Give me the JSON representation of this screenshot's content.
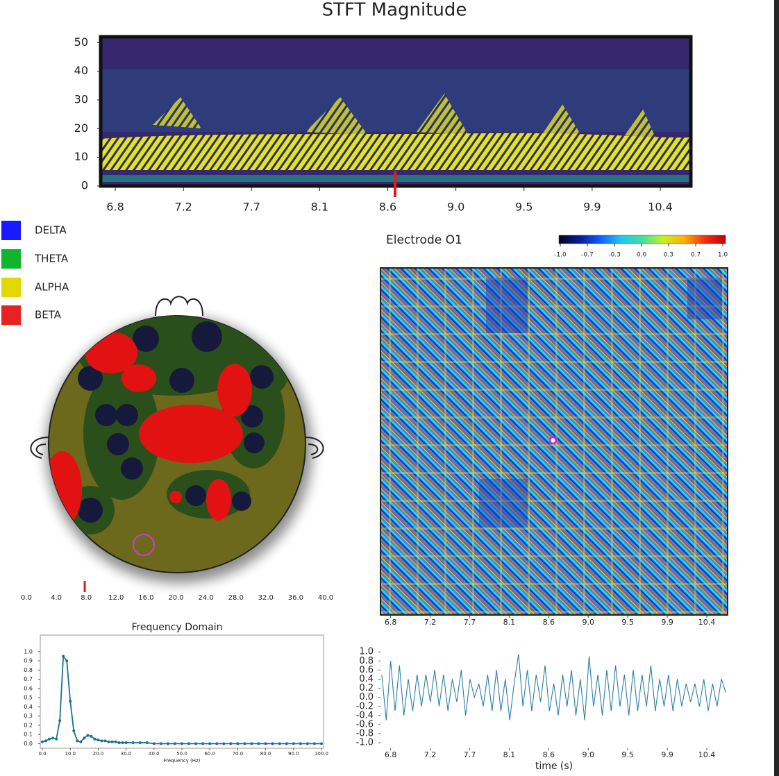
{
  "chart_data": [
    {
      "type": "spectrogram",
      "title": "STFT Magnitude",
      "xlim": [
        6.704,
        10.585
      ],
      "xticks": [
        6.8,
        {
          "value": 7.248,
          "label": "7.2"
        },
        {
          "value": 7.696,
          "label": "7.7"
        },
        {
          "value": 8.144,
          "label": "8.1"
        },
        {
          "value": 8.592,
          "label": "8.6"
        },
        {
          "value": 9.04,
          "label": "9.0"
        },
        {
          "value": 9.488,
          "label": "9.5"
        },
        {
          "value": 9.936,
          "label": "9.9"
        },
        {
          "value": 10.384,
          "label": "10.4"
        }
      ],
      "ylim": [
        0,
        52
      ],
      "yticks": [
        0,
        10,
        20,
        30,
        40,
        50
      ],
      "marker": 8.64,
      "marker_color": "#e01b1b"
    },
    {
      "type": "topomap",
      "legend": [
        {
          "name": "DELTA",
          "color": "#1a1aff"
        },
        {
          "name": "THETA",
          "color": "#10b52c"
        },
        {
          "name": "ALPHA",
          "color": "#e2d800"
        },
        {
          "name": "BETA",
          "color": "#e82222"
        }
      ],
      "xlim": [
        0,
        40
      ],
      "xticks": [
        {
          "value": 0,
          "label": "0.0"
        },
        {
          "value": 4,
          "label": "4.0"
        },
        {
          "value": 8,
          "label": "8.0"
        },
        {
          "value": 12,
          "label": "12.0"
        },
        {
          "value": 16,
          "label": "16.0"
        },
        {
          "value": 20,
          "label": "20.0"
        },
        {
          "value": 24,
          "label": "24.0"
        },
        {
          "value": 28,
          "label": "28.0"
        },
        {
          "value": 32,
          "label": "32.0"
        },
        {
          "value": 36,
          "label": "36.0"
        },
        {
          "value": 40,
          "label": "40.0"
        }
      ],
      "marker": 7.8,
      "marker_color": "#e01b1b"
    },
    {
      "type": "heatmap",
      "title": "Electrode O1",
      "xlim": [
        6.685,
        10.62
      ],
      "xticks": [
        6.8,
        {
          "value": 7.248,
          "label": "7.2"
        },
        {
          "value": 7.696,
          "label": "7.7"
        },
        {
          "value": 8.144,
          "label": "8.1"
        },
        {
          "value": 8.592,
          "label": "8.6"
        },
        {
          "value": 9.04,
          "label": "9.0"
        },
        {
          "value": 9.488,
          "label": "9.5"
        },
        {
          "value": 9.936,
          "label": "9.9"
        },
        {
          "value": 10.384,
          "label": "10.4"
        }
      ],
      "clim": [
        -1,
        1
      ],
      "cticks": [
        {
          "value": -1,
          "label": "-1.0"
        },
        {
          "value": -0.667,
          "label": "-0.7"
        },
        {
          "value": -0.333,
          "label": "-0.3"
        },
        {
          "value": 0,
          "label": "0.0"
        },
        {
          "value": 0.333,
          "label": "0.3"
        },
        {
          "value": 0.667,
          "label": "0.7"
        },
        {
          "value": 1,
          "label": "1.0"
        }
      ],
      "colormap": [
        "#05051a",
        "#0a1a9a",
        "#1060ff",
        "#20c8f0",
        "#40e0a0",
        "#c8f020",
        "#ffb000",
        "#f03010",
        "#c00000"
      ],
      "marker": 8.64
    },
    {
      "type": "line",
      "title": "Frequency Domain",
      "xlabel": "Frequency (Hz)",
      "color": "#1b7193",
      "xlim": [
        -0.75,
        100.75
      ],
      "ylim": [
        -0.05,
        1.18
      ],
      "xticks": [
        {
          "value": 0,
          "label": "0.0"
        },
        {
          "value": 10,
          "label": "10.0"
        },
        {
          "value": 20,
          "label": "20.0"
        },
        {
          "value": 30,
          "label": "30.0"
        },
        {
          "value": 40,
          "label": "40.0"
        },
        {
          "value": 50,
          "label": "50.0"
        },
        {
          "value": 60,
          "label": "60.0"
        },
        {
          "value": 70,
          "label": "70.0"
        },
        {
          "value": 80,
          "label": "80.0"
        },
        {
          "value": 90,
          "label": "90.0"
        },
        {
          "value": 100,
          "label": "100.0"
        }
      ],
      "yticks": [
        {
          "value": 0,
          "label": "0.0"
        },
        0.1,
        0.2,
        0.3,
        0.4,
        0.5,
        0.6,
        0.7,
        0.8,
        0.9,
        {
          "value": 1,
          "label": "1.0"
        }
      ],
      "x": [
        0,
        1.25,
        2.5,
        3.75,
        5,
        6.25,
        7.5,
        8.75,
        10,
        11.25,
        12.5,
        13.75,
        15,
        16.25,
        17.5,
        18.75,
        20,
        21.25,
        22.5,
        23.75,
        25,
        26.25,
        27.5,
        28.75,
        30,
        32.5,
        35,
        37.5,
        40,
        42.5,
        45,
        47.5,
        50,
        52.5,
        55,
        57.5,
        60,
        62.5,
        65,
        67.5,
        70,
        72.5,
        75,
        77.5,
        80,
        82.5,
        85,
        87.5,
        90,
        92.5,
        95,
        97.5,
        100
      ],
      "values": [
        0.02,
        0.03,
        0.05,
        0.06,
        0.05,
        0.25,
        0.95,
        0.9,
        0.46,
        0.14,
        0.03,
        0.02,
        0.06,
        0.09,
        0.08,
        0.05,
        0.04,
        0.03,
        0.03,
        0.02,
        0.02,
        0.02,
        0.01,
        0.01,
        0.01,
        0.01,
        0.01,
        0.01,
        0,
        0,
        0,
        0,
        0,
        0,
        0,
        0,
        0,
        0,
        0,
        0,
        0,
        0,
        0,
        0,
        0,
        0,
        0,
        0,
        0,
        0,
        0,
        0,
        0
      ]
    },
    {
      "type": "line",
      "xlabel": "time (s)",
      "color": "#2a7fa0",
      "xlim": [
        6.685,
        10.62
      ],
      "ylim": [
        -1.12,
        1.14
      ],
      "xticks": [
        6.8,
        {
          "value": 7.248,
          "label": "7.2"
        },
        {
          "value": 7.696,
          "label": "7.7"
        },
        {
          "value": 8.144,
          "label": "8.1"
        },
        {
          "value": 8.592,
          "label": "8.6"
        },
        {
          "value": 9.04,
          "label": "9.0"
        },
        {
          "value": 9.488,
          "label": "9.5"
        },
        {
          "value": 9.936,
          "label": "9.9"
        },
        {
          "value": 10.384,
          "label": "10.4"
        }
      ],
      "yticks": [
        {
          "value": 1,
          "label": "1.0"
        },
        0.8,
        0.6,
        0.4,
        0.2,
        {
          "value": 0,
          "label": "0.0"
        },
        -0.2,
        -0.4,
        -0.6,
        -0.8,
        {
          "value": -1,
          "label": "-1.0"
        }
      ],
      "x": [
        6.7,
        6.75,
        6.8,
        6.85,
        6.9,
        6.95,
        7.0,
        7.05,
        7.1,
        7.15,
        7.2,
        7.25,
        7.3,
        7.35,
        7.4,
        7.45,
        7.5,
        7.55,
        7.6,
        7.65,
        7.7,
        7.75,
        7.8,
        7.85,
        7.9,
        7.95,
        8.0,
        8.05,
        8.1,
        8.15,
        8.2,
        8.25,
        8.3,
        8.35,
        8.4,
        8.45,
        8.5,
        8.55,
        8.6,
        8.65,
        8.7,
        8.75,
        8.8,
        8.85,
        8.9,
        8.95,
        9.0,
        9.05,
        9.1,
        9.15,
        9.2,
        9.25,
        9.3,
        9.35,
        9.4,
        9.45,
        9.5,
        9.55,
        9.6,
        9.65,
        9.7,
        9.75,
        9.8,
        9.85,
        9.9,
        9.95,
        10.0,
        10.05,
        10.1,
        10.15,
        10.2,
        10.25,
        10.3,
        10.35,
        10.4,
        10.45,
        10.5,
        10.55,
        10.6
      ],
      "values": [
        0.5,
        -0.5,
        0.8,
        -0.3,
        0.7,
        -0.4,
        0.4,
        -0.3,
        0.5,
        -0.2,
        0.5,
        -0.1,
        0.6,
        -0.2,
        0.5,
        -0.3,
        0.4,
        -0.1,
        0.6,
        -0.4,
        0.4,
        0.0,
        0.3,
        -0.2,
        0.5,
        -0.3,
        0.6,
        -0.3,
        0.4,
        -0.5,
        0.3,
        0.95,
        -0.2,
        0.6,
        -0.3,
        0.5,
        -0.1,
        0.7,
        -0.3,
        0.3,
        -0.4,
        0.5,
        -0.2,
        0.6,
        -0.4,
        0.4,
        -0.5,
        0.9,
        -0.2,
        0.5,
        -0.4,
        0.6,
        -0.3,
        0.7,
        -0.2,
        0.5,
        -0.4,
        0.6,
        -0.3,
        0.5,
        -0.2,
        0.7,
        -0.3,
        0.4,
        -0.2,
        0.5,
        -0.3,
        0.4,
        -0.2,
        0.3,
        -0.1,
        0.3,
        -0.2,
        0.4,
        -0.3,
        0.3,
        -0.2,
        0.4,
        0.1
      ]
    }
  ]
}
